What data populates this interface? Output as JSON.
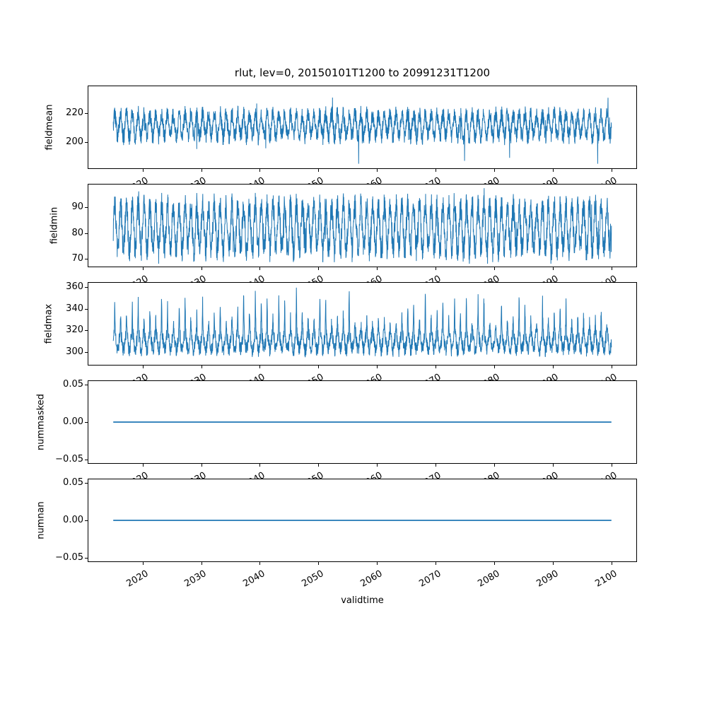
{
  "figure": {
    "title": "rlut, lev=0, 20150101T1200 to 20991231T1200",
    "xlabel": "validtime",
    "background_color": "#ffffff",
    "line_color": "#1f77b4",
    "frame_color": "#000000",
    "text_color": "#000000"
  },
  "axis": {
    "xlim": [
      2010.75,
      2104.25
    ],
    "xticks": [
      2020,
      2030,
      2040,
      2050,
      2060,
      2070,
      2080,
      2090,
      2100
    ],
    "xtick_labels": [
      "2020",
      "2030",
      "2040",
      "2050",
      "2060",
      "2070",
      "2080",
      "2090",
      "2100"
    ],
    "xtick_rotation_deg": 30
  },
  "chart_data": [
    {
      "type": "line",
      "ylabel": "fieldmean",
      "x_range": [
        2015.0,
        2100.0
      ],
      "ylim": [
        181.3,
        239.2
      ],
      "yticks": [
        200,
        220
      ],
      "ytick_labels": [
        "200",
        "220"
      ],
      "series": {
        "name": "fieldmean",
        "pattern": "annual-cycle-with-noise",
        "mean": 211.5,
        "seasonal_amplitude": 8,
        "noise_amplitude": 6,
        "outlier_low": {
          "prob": 0.004,
          "amp": 14
        },
        "outlier_high": {
          "prob": 0.004,
          "amp": 10
        },
        "min": 184.5,
        "max": 237.5,
        "seed": 3
      }
    },
    {
      "type": "line",
      "ylabel": "fieldmin",
      "x_range": [
        2015.0,
        2100.0
      ],
      "ylim": [
        66.9,
        98.9
      ],
      "yticks": [
        70,
        80,
        90
      ],
      "ytick_labels": [
        "70",
        "80",
        "90"
      ],
      "series": {
        "name": "fieldmin",
        "pattern": "annual-cycle-with-noise",
        "mean": 82,
        "seasonal_amplitude": 8.5,
        "noise_amplitude": 5.2,
        "outlier_low": {
          "prob": 0.004,
          "amp": 8
        },
        "outlier_high": {
          "prob": 0.004,
          "amp": 8
        },
        "min": 68,
        "max": 97.5,
        "seed": 7
      }
    },
    {
      "type": "line",
      "ylabel": "fieldmax",
      "x_range": [
        2015.0,
        2100.0
      ],
      "ylim": [
        288,
        364
      ],
      "yticks": [
        300,
        320,
        340,
        360
      ],
      "ytick_labels": [
        "300",
        "320",
        "340",
        "360"
      ],
      "series": {
        "name": "fieldmax",
        "pattern": "annual-cycle-with-noise-and-annual-spikes",
        "mean": 310,
        "seasonal_amplitude": 8,
        "noise_amplitude": 7,
        "annual_spike": {
          "base_amp": 10,
          "extra_amp": 32,
          "width_years": 0.09,
          "phase": 0.25
        },
        "min": 292,
        "max": 360,
        "seed": 11
      }
    },
    {
      "type": "line",
      "ylabel": "nummasked",
      "x_range": [
        2015.0,
        2100.0
      ],
      "ylim": [
        -0.055,
        0.055
      ],
      "yticks": [
        -0.05,
        0.0,
        0.05
      ],
      "ytick_labels": [
        "−0.05",
        "0.00",
        "0.05"
      ],
      "series": {
        "name": "nummasked",
        "pattern": "constant",
        "value": 0.0,
        "seed": 1
      }
    },
    {
      "type": "line",
      "ylabel": "numnan",
      "x_range": [
        2015.0,
        2100.0
      ],
      "ylim": [
        -0.055,
        0.055
      ],
      "yticks": [
        -0.05,
        0.0,
        0.05
      ],
      "ytick_labels": [
        "−0.05",
        "0.00",
        "0.05"
      ],
      "series": {
        "name": "numnan",
        "pattern": "constant",
        "value": 0.0,
        "seed": 2
      }
    }
  ]
}
